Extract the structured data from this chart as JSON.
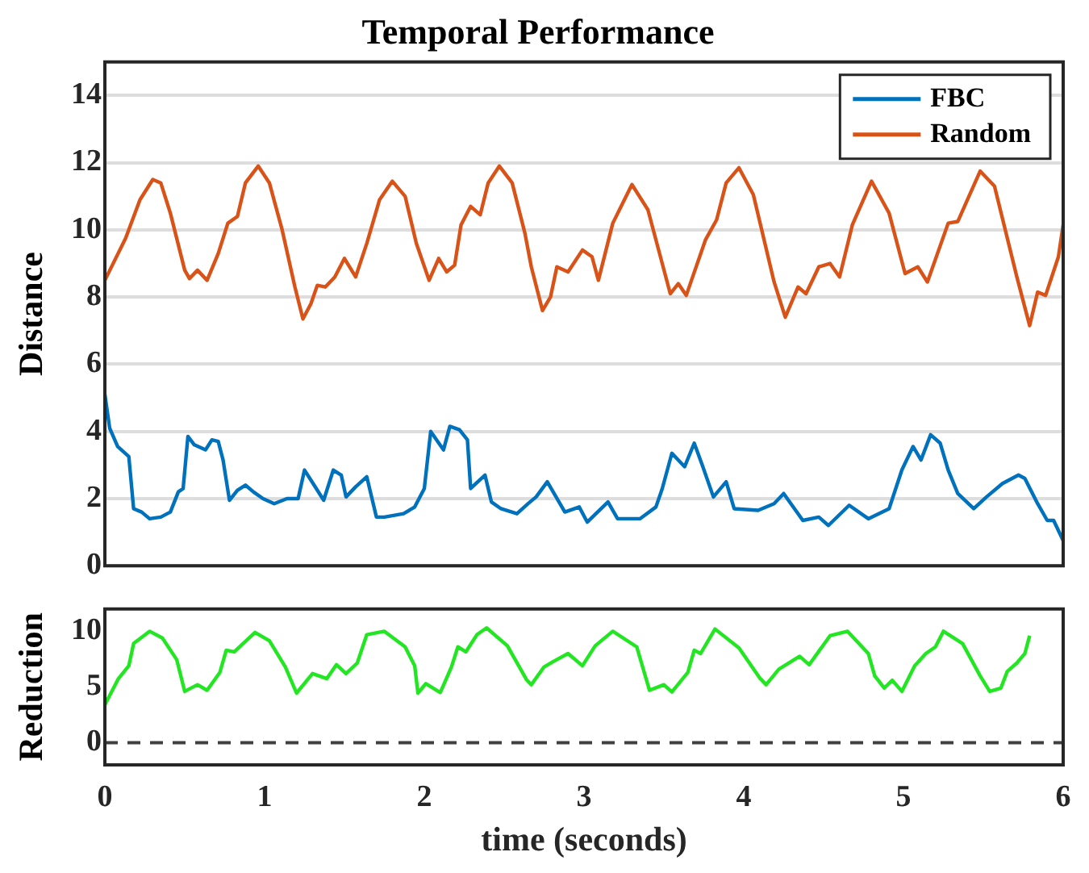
{
  "chart_data": [
    {
      "type": "line",
      "title": "Temporal Performance",
      "ylabel": "Distance",
      "xlim": [
        0,
        6
      ],
      "xticks": [
        0,
        1,
        2,
        3,
        4,
        5,
        6
      ],
      "ylim": [
        0,
        15
      ],
      "yticks": [
        0,
        2,
        4,
        6,
        8,
        10,
        12,
        14
      ],
      "grid": "y",
      "legend": "top right",
      "tick_labels": "y",
      "line_style": "solid",
      "marker": "none",
      "series": [
        {
          "name": "FBC",
          "color": "#0072bd",
          "x": [
            0,
            0.03,
            0.08,
            0.15,
            0.18,
            0.23,
            0.28,
            0.35,
            0.41,
            0.46,
            0.49,
            0.52,
            0.56,
            0.63,
            0.67,
            0.71,
            0.74,
            0.78,
            0.83,
            0.88,
            0.93,
            0.99,
            1.06,
            1.14,
            1.21,
            1.25,
            1.31,
            1.37,
            1.43,
            1.48,
            1.51,
            1.57,
            1.64,
            1.7,
            1.75,
            1.87,
            1.94,
            2,
            2.04,
            2.12,
            2.16,
            2.22,
            2.27,
            2.29,
            2.38,
            2.42,
            2.48,
            2.58,
            2.65,
            2.7,
            2.77,
            2.88,
            2.97,
            3.02,
            3.15,
            3.21,
            3.35,
            3.45,
            3.49,
            3.55,
            3.63,
            3.69,
            3.74,
            3.81,
            3.89,
            3.94,
            4.09,
            4.19,
            4.25,
            4.37,
            4.47,
            4.53,
            4.66,
            4.78,
            4.91,
            4.99,
            5.06,
            5.11,
            5.17,
            5.23,
            5.28,
            5.34,
            5.44,
            5.52,
            5.62,
            5.72,
            5.76,
            5.84,
            5.9,
            5.94,
            6
          ],
          "values": [
            5.1,
            4.1,
            3.55,
            3.25,
            1.7,
            1.6,
            1.4,
            1.45,
            1.6,
            2.2,
            2.3,
            3.85,
            3.6,
            3.45,
            3.75,
            3.7,
            3.15,
            1.95,
            2.25,
            2.4,
            2.2,
            2,
            1.85,
            2,
            2,
            2.85,
            2.4,
            1.95,
            2.85,
            2.7,
            2.05,
            2.35,
            2.65,
            1.45,
            1.45,
            1.55,
            1.75,
            2.3,
            4,
            3.45,
            4.15,
            4.05,
            3.75,
            2.3,
            2.7,
            1.9,
            1.7,
            1.55,
            1.85,
            2.05,
            2.5,
            1.6,
            1.75,
            1.3,
            1.9,
            1.4,
            1.4,
            1.75,
            2.3,
            3.35,
            2.95,
            3.65,
            3,
            2.05,
            2.5,
            1.7,
            1.65,
            1.85,
            2.15,
            1.35,
            1.45,
            1.2,
            1.8,
            1.4,
            1.7,
            2.85,
            3.55,
            3.15,
            3.9,
            3.65,
            2.85,
            2.15,
            1.7,
            2.05,
            2.45,
            2.7,
            2.6,
            1.85,
            1.35,
            1.35,
            0.75
          ]
        },
        {
          "name": "Random",
          "color": "#d95319",
          "x": [
            0,
            0.13,
            0.22,
            0.3,
            0.35,
            0.41,
            0.5,
            0.53,
            0.58,
            0.64,
            0.71,
            0.77,
            0.83,
            0.88,
            0.96,
            1.03,
            1.11,
            1.19,
            1.24,
            1.29,
            1.33,
            1.38,
            1.44,
            1.5,
            1.57,
            1.64,
            1.72,
            1.8,
            1.88,
            1.95,
            2.03,
            2.09,
            2.14,
            2.19,
            2.23,
            2.29,
            2.35,
            2.4,
            2.47,
            2.55,
            2.63,
            2.67,
            2.74,
            2.79,
            2.83,
            2.9,
            2.99,
            3.05,
            3.09,
            3.18,
            3.3,
            3.4,
            3.54,
            3.59,
            3.64,
            3.76,
            3.83,
            3.89,
            3.97,
            4.06,
            4.19,
            4.26,
            4.34,
            4.39,
            4.47,
            4.54,
            4.6,
            4.68,
            4.8,
            4.91,
            5.01,
            5.09,
            5.15,
            5.28,
            5.34,
            5.48,
            5.57,
            5.71,
            5.79,
            5.84,
            5.89,
            5.97,
            6
          ],
          "values": [
            8.5,
            9.75,
            10.9,
            11.5,
            11.4,
            10.5,
            8.8,
            8.55,
            8.8,
            8.5,
            9.3,
            10.2,
            10.4,
            11.4,
            11.9,
            11.4,
            10,
            8.3,
            7.35,
            7.8,
            8.35,
            8.3,
            8.6,
            9.15,
            8.6,
            9.6,
            10.9,
            11.45,
            11,
            9.6,
            8.5,
            9.15,
            8.75,
            8.95,
            10.15,
            10.7,
            10.45,
            11.4,
            11.9,
            11.4,
            9.9,
            8.9,
            7.6,
            8,
            8.9,
            8.75,
            9.4,
            9.2,
            8.5,
            10.2,
            11.35,
            10.6,
            8.1,
            8.4,
            8.05,
            9.7,
            10.3,
            11.4,
            11.85,
            11.05,
            8.45,
            7.4,
            8.3,
            8.1,
            8.9,
            9,
            8.6,
            10.15,
            11.45,
            10.5,
            8.7,
            8.9,
            8.45,
            10.2,
            10.25,
            11.75,
            11.3,
            8.6,
            7.15,
            8.15,
            8.05,
            9.2,
            10.15
          ]
        }
      ]
    },
    {
      "type": "line",
      "ylabel": "Reduction",
      "xlabel": "time (seconds)",
      "xlim": [
        0,
        6
      ],
      "xticks": [
        0,
        1,
        2,
        3,
        4,
        5,
        6
      ],
      "ylim": [
        -2,
        12
      ],
      "yticks": [
        0,
        5,
        10
      ],
      "grid": false,
      "legend": false,
      "line_style": "solid",
      "marker": "none",
      "ref_lines": [
        {
          "axis": "y",
          "value": 0,
          "color": "#404040",
          "line_style": "dashed"
        }
      ],
      "series": [
        {
          "color": "#22e622",
          "x": [
            0,
            0.085,
            0.15,
            0.18,
            0.28,
            0.36,
            0.45,
            0.5,
            0.58,
            0.64,
            0.72,
            0.76,
            0.81,
            0.94,
            1.03,
            1.13,
            1.2,
            1.3,
            1.39,
            1.45,
            1.51,
            1.58,
            1.64,
            1.75,
            1.88,
            1.94,
            1.96,
            2.01,
            2.1,
            2.17,
            2.21,
            2.26,
            2.33,
            2.39,
            2.52,
            2.64,
            2.67,
            2.75,
            2.81,
            2.9,
            2.99,
            3.07,
            3.18,
            3.33,
            3.41,
            3.5,
            3.55,
            3.65,
            3.69,
            3.73,
            3.82,
            3.97,
            4.1,
            4.14,
            4.22,
            4.35,
            4.41,
            4.54,
            4.65,
            4.78,
            4.82,
            4.88,
            4.93,
            4.99,
            5.07,
            5.14,
            5.2,
            5.25,
            5.37,
            5.48,
            5.54,
            5.61,
            5.65,
            5.71,
            5.76,
            5.79
          ],
          "values": [
            3.4,
            5.75,
            6.9,
            8.9,
            10,
            9.4,
            7.45,
            4.6,
            5.2,
            4.7,
            6.3,
            8.3,
            8.15,
            9.9,
            9.15,
            6.8,
            4.45,
            6.2,
            5.75,
            7,
            6.2,
            7.15,
            9.7,
            10,
            8.6,
            6.9,
            4.45,
            5.3,
            4.5,
            6.8,
            8.6,
            8.15,
            9.7,
            10.3,
            8.7,
            5.65,
            5.2,
            6.8,
            7.3,
            8,
            6.9,
            8.7,
            10,
            8.6,
            4.7,
            5.2,
            4.55,
            6.3,
            8.3,
            8,
            10.2,
            8.5,
            5.8,
            5.2,
            6.6,
            7.75,
            7,
            9.6,
            10,
            8,
            6,
            4.9,
            5.6,
            4.6,
            6.9,
            8,
            8.6,
            10,
            8.9,
            6,
            4.6,
            4.9,
            6.4,
            7.15,
            8,
            9.6
          ]
        }
      ]
    }
  ]
}
